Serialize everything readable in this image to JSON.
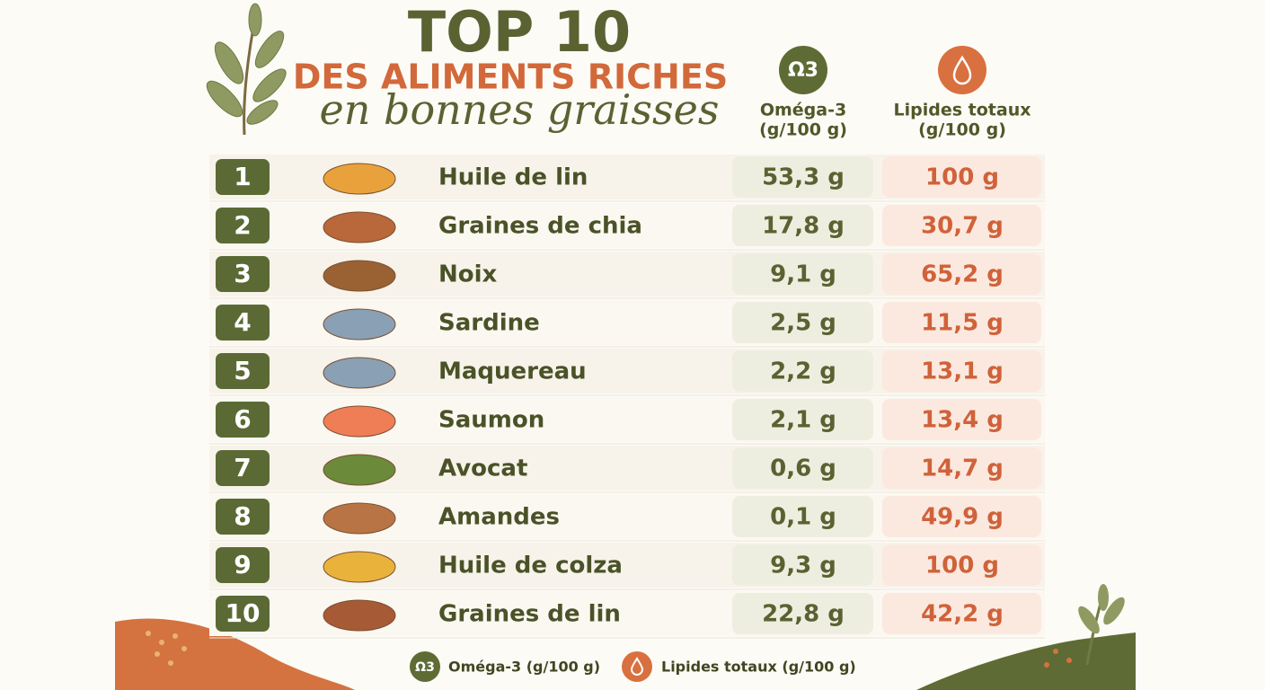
{
  "header": {
    "title": "TOP 10",
    "subtitle": "DES ALIMENTS RICHES",
    "tagline": "en bonnes graisses"
  },
  "columns": {
    "omega": {
      "icon": "Ω3",
      "label": "Oméga-3",
      "unit": "(g/100 g)"
    },
    "lipids": {
      "label": "Lipides totaux",
      "unit": "(g/100 g)"
    }
  },
  "table": {
    "rows": [
      [
        "1",
        "Huile de lin",
        "53,3 g",
        "100 g"
      ],
      [
        "2",
        "Graines de chia",
        "17,8 g",
        "30,7 g"
      ],
      [
        "3",
        "Noix",
        "9,1 g",
        "65,2 g"
      ],
      [
        "4",
        "Sardine",
        "2,5 g",
        "11,5 g"
      ],
      [
        "5",
        "Maquereau",
        "2,2 g",
        "13,1 g"
      ],
      [
        "6",
        "Saumon",
        "2,1 g",
        "13,4 g"
      ],
      [
        "7",
        "Avocat",
        "0,6 g",
        "14,7 g"
      ],
      [
        "8",
        "Amandes",
        "0,1 g",
        "49,9 g"
      ],
      [
        "9",
        "Huile de colza",
        "9,3 g",
        "100 g"
      ],
      [
        "10",
        "Graines de lin",
        "22,8 g",
        "42,2 g"
      ]
    ]
  },
  "legend": {
    "omega": "Oméga-3 (g/100 g)",
    "lipids": "Lipides totaux (g/100 g)"
  }
}
